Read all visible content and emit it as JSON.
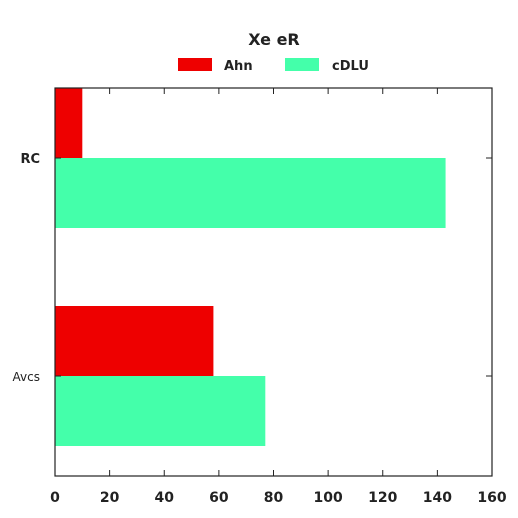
{
  "colors": {
    "Ahn": "#ee0000",
    "cDLU": "#44ffaa",
    "axis": "#222222"
  },
  "chart_data": {
    "type": "bar",
    "orientation": "horizontal",
    "title": "Xe eR",
    "categories": [
      "RC",
      "Avcs"
    ],
    "series": [
      {
        "name": "Ahn",
        "values": [
          10,
          58
        ]
      },
      {
        "name": "cDLU",
        "values": [
          143,
          77
        ]
      }
    ],
    "xlim": [
      0,
      160
    ],
    "xticks": [
      "0",
      "20",
      "40",
      "60",
      "80",
      "100",
      "120",
      "140",
      "160"
    ],
    "xlabel": "",
    "ylabel": "",
    "grid": false,
    "legend_position": "top-center"
  }
}
